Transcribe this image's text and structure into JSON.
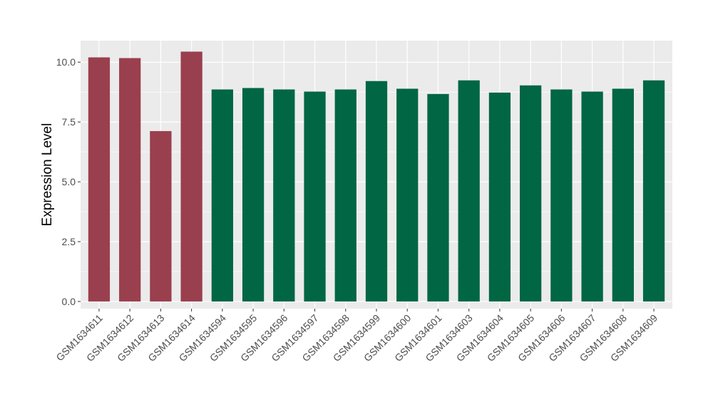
{
  "chart_data": {
    "type": "bar",
    "title": "",
    "xlabel": "",
    "ylabel": "Expression Level",
    "ylim": [
      -0.3,
      10.9
    ],
    "yticks": [
      0.0,
      2.5,
      5.0,
      7.5,
      10.0
    ],
    "ytick_labels": [
      "0.0",
      "2.5",
      "5.0",
      "7.5",
      "10.0"
    ],
    "grid": true,
    "legend": "none",
    "panel_background": "#EBEBEB",
    "grid_color": "#FFFFFF",
    "categories": [
      "GSM1634611",
      "GSM1634612",
      "GSM1634613",
      "GSM1634614",
      "GSM1634594",
      "GSM1634595",
      "GSM1634596",
      "GSM1634597",
      "GSM1634598",
      "GSM1634599",
      "GSM1634600",
      "GSM1634601",
      "GSM1634603",
      "GSM1634604",
      "GSM1634605",
      "GSM1634606",
      "GSM1634607",
      "GSM1634608",
      "GSM1634609"
    ],
    "values": [
      10.2,
      10.17,
      7.12,
      10.44,
      8.86,
      8.92,
      8.86,
      8.77,
      8.86,
      9.21,
      8.89,
      8.67,
      9.24,
      8.73,
      9.03,
      8.86,
      8.77,
      8.89,
      9.24
    ],
    "colors": [
      "#9A3F4E",
      "#9A3F4E",
      "#9A3F4E",
      "#9A3F4E",
      "#006644",
      "#006644",
      "#006644",
      "#006644",
      "#006644",
      "#006644",
      "#006644",
      "#006644",
      "#006644",
      "#006644",
      "#006644",
      "#006644",
      "#006644",
      "#006644",
      "#006644"
    ]
  }
}
